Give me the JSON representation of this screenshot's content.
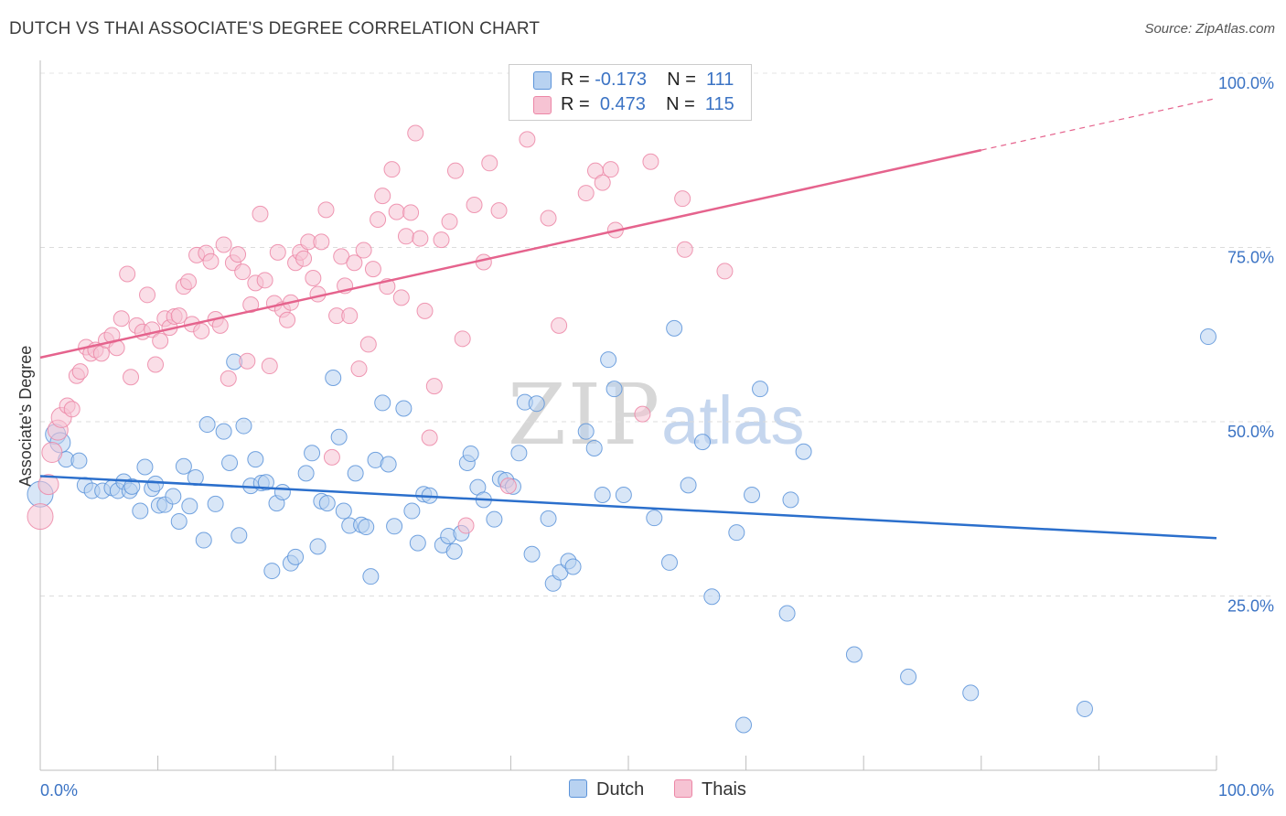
{
  "title": "DUTCH VS THAI ASSOCIATE'S DEGREE CORRELATION CHART",
  "source": "Source: ZipAtlas.com",
  "watermark": {
    "zip": "ZIP",
    "atlas": "atlas"
  },
  "colors": {
    "dutch": "#5b93d9",
    "dutch_fill": "#b8d2f1",
    "thais": "#ec86a6",
    "thais_fill": "#f6c3d3",
    "dutch_line": "#2b6fcc",
    "thais_line": "#e5638d",
    "tick_text": "#3b73c4"
  },
  "legend": {
    "r_label": "R =",
    "n_label": "N =",
    "rows": [
      {
        "r": "-0.173",
        "n": "111"
      },
      {
        "r": "0.473",
        "n": "115"
      }
    ]
  },
  "bottom_legend": [
    "Dutch",
    "Thais"
  ],
  "chart_data": {
    "type": "scatter",
    "title": "DUTCH VS THAI ASSOCIATE'S DEGREE CORRELATION CHART",
    "xlabel": "",
    "ylabel": "Associate's Degree",
    "xlim": [
      0,
      100
    ],
    "ylim": [
      0,
      100
    ],
    "x_tick_labels": [
      "0.0%",
      "100.0%"
    ],
    "y_tick_labels": [
      "100.0%",
      "75.0%",
      "50.0%",
      "25.0%"
    ],
    "y_ticks": [
      100,
      75,
      50,
      25
    ],
    "grid": true,
    "legend_position": "top-center",
    "series": [
      {
        "name": "Dutch",
        "color": "#5b93d9",
        "r": -0.173,
        "n": 111,
        "trend": {
          "x": [
            0,
            100
          ],
          "y": [
            42.2,
            33.3
          ],
          "dashed_from": null
        },
        "points": [
          [
            0,
            39.6
          ],
          [
            1.3,
            48.2
          ],
          [
            1.7,
            47
          ],
          [
            2.2,
            44.6
          ],
          [
            3.3,
            44.4
          ],
          [
            3.8,
            40.9
          ],
          [
            4.4,
            40.1
          ],
          [
            5.3,
            40.1
          ],
          [
            6.1,
            40.5
          ],
          [
            6.6,
            40.1
          ],
          [
            7.1,
            41.4
          ],
          [
            7.6,
            40.1
          ],
          [
            7.8,
            40.7
          ],
          [
            8.5,
            37.2
          ],
          [
            8.9,
            43.5
          ],
          [
            9.5,
            40.4
          ],
          [
            9.8,
            41.1
          ],
          [
            10.1,
            38
          ],
          [
            10.6,
            38.1
          ],
          [
            11.3,
            39.3
          ],
          [
            11.8,
            35.7
          ],
          [
            12.2,
            43.6
          ],
          [
            12.7,
            37.9
          ],
          [
            13.2,
            42
          ],
          [
            13.9,
            33
          ],
          [
            14.2,
            49.6
          ],
          [
            14.9,
            38.2
          ],
          [
            15.6,
            48.6
          ],
          [
            16.1,
            44.1
          ],
          [
            16.5,
            58.6
          ],
          [
            16.9,
            33.7
          ],
          [
            17.3,
            49.4
          ],
          [
            17.9,
            40.8
          ],
          [
            18.3,
            44.6
          ],
          [
            18.8,
            41.2
          ],
          [
            19.2,
            41.3
          ],
          [
            19.7,
            28.6
          ],
          [
            20.1,
            38.3
          ],
          [
            20.6,
            39.9
          ],
          [
            21.3,
            29.7
          ],
          [
            21.7,
            30.6
          ],
          [
            22.6,
            42.6
          ],
          [
            23.1,
            45.5
          ],
          [
            23.6,
            32.1
          ],
          [
            23.9,
            38.6
          ],
          [
            24.4,
            38.3
          ],
          [
            24.9,
            56.3
          ],
          [
            25.4,
            47.8
          ],
          [
            25.8,
            37.2
          ],
          [
            26.3,
            35.1
          ],
          [
            26.8,
            42.6
          ],
          [
            27.3,
            35.2
          ],
          [
            27.7,
            34.9
          ],
          [
            28.1,
            27.8
          ],
          [
            28.5,
            44.5
          ],
          [
            29.1,
            52.7
          ],
          [
            29.6,
            43.9
          ],
          [
            30.1,
            35
          ],
          [
            30.9,
            51.9
          ],
          [
            31.6,
            37.2
          ],
          [
            32.1,
            32.6
          ],
          [
            32.6,
            39.6
          ],
          [
            33.1,
            39.4
          ],
          [
            34.2,
            32.3
          ],
          [
            34.7,
            33.6
          ],
          [
            35.2,
            31.4
          ],
          [
            35.8,
            34
          ],
          [
            36.3,
            44.1
          ],
          [
            36.6,
            45.4
          ],
          [
            37.2,
            40.6
          ],
          [
            37.7,
            38.8
          ],
          [
            38.6,
            36
          ],
          [
            39.1,
            41.8
          ],
          [
            39.6,
            41.6
          ],
          [
            40.2,
            40.7
          ],
          [
            40.7,
            45.5
          ],
          [
            41.2,
            52.8
          ],
          [
            41.8,
            31
          ],
          [
            42.2,
            52.6
          ],
          [
            43.2,
            36.1
          ],
          [
            43.6,
            26.8
          ],
          [
            44.2,
            28.4
          ],
          [
            44.9,
            30
          ],
          [
            45.3,
            29.2
          ],
          [
            46.4,
            48.6
          ],
          [
            47.1,
            46.2
          ],
          [
            47.8,
            39.5
          ],
          [
            48.3,
            58.9
          ],
          [
            48.8,
            54.7
          ],
          [
            49.6,
            39.5
          ],
          [
            52.2,
            36.2
          ],
          [
            53.5,
            29.8
          ],
          [
            53.9,
            63.4
          ],
          [
            55.1,
            40.9
          ],
          [
            56.3,
            47.1
          ],
          [
            57.1,
            24.9
          ],
          [
            59.2,
            34.1
          ],
          [
            59.8,
            6.5
          ],
          [
            60.5,
            39.5
          ],
          [
            61.2,
            54.7
          ],
          [
            63.5,
            22.5
          ],
          [
            63.8,
            38.8
          ],
          [
            64.9,
            45.7
          ],
          [
            69.2,
            16.6
          ],
          [
            73.8,
            13.4
          ],
          [
            79.1,
            11.1
          ],
          [
            88.8,
            8.8
          ],
          [
            99.3,
            62.2
          ]
        ]
      },
      {
        "name": "Thais",
        "color": "#ec86a6",
        "r": 0.473,
        "n": 115,
        "trend": {
          "x": [
            0,
            100
          ],
          "y": [
            59.2,
            96.4
          ],
          "dashed_from": 80
        },
        "points": [
          [
            0,
            36.4
          ],
          [
            0.7,
            41
          ],
          [
            1,
            45.6
          ],
          [
            1.5,
            48.8
          ],
          [
            1.8,
            50.6
          ],
          [
            2.3,
            52.3
          ],
          [
            2.7,
            51.8
          ],
          [
            3.1,
            56.6
          ],
          [
            3.4,
            57.2
          ],
          [
            3.9,
            60.7
          ],
          [
            4.3,
            59.8
          ],
          [
            4.7,
            60.3
          ],
          [
            5.2,
            59.8
          ],
          [
            5.6,
            61.7
          ],
          [
            6.1,
            62.4
          ],
          [
            6.5,
            60.6
          ],
          [
            6.9,
            64.8
          ],
          [
            7.4,
            71.2
          ],
          [
            7.7,
            56.4
          ],
          [
            8.2,
            63.8
          ],
          [
            8.7,
            62.9
          ],
          [
            9.1,
            68.2
          ],
          [
            9.5,
            63.2
          ],
          [
            9.8,
            58.2
          ],
          [
            10.2,
            61.6
          ],
          [
            10.6,
            64.8
          ],
          [
            11,
            63.5
          ],
          [
            11.4,
            65.1
          ],
          [
            11.8,
            65.2
          ],
          [
            12.2,
            69.4
          ],
          [
            12.6,
            70.1
          ],
          [
            12.9,
            64
          ],
          [
            13.3,
            73.9
          ],
          [
            13.7,
            63
          ],
          [
            14.1,
            74.2
          ],
          [
            14.5,
            73
          ],
          [
            14.9,
            64.7
          ],
          [
            15.3,
            63.8
          ],
          [
            15.6,
            75.4
          ],
          [
            16,
            56.2
          ],
          [
            16.4,
            72.8
          ],
          [
            16.8,
            74
          ],
          [
            17.2,
            71.5
          ],
          [
            17.6,
            58.7
          ],
          [
            17.9,
            66.8
          ],
          [
            18.3,
            69.9
          ],
          [
            18.7,
            79.8
          ],
          [
            19.1,
            70.3
          ],
          [
            19.5,
            58
          ],
          [
            19.9,
            67
          ],
          [
            20.2,
            74.3
          ],
          [
            20.6,
            66.1
          ],
          [
            21,
            64.6
          ],
          [
            21.3,
            67.1
          ],
          [
            21.7,
            72.8
          ],
          [
            22.1,
            74.3
          ],
          [
            22.4,
            73.4
          ],
          [
            22.8,
            75.8
          ],
          [
            23.2,
            70.6
          ],
          [
            23.6,
            68.3
          ],
          [
            23.9,
            75.8
          ],
          [
            24.3,
            80.4
          ],
          [
            24.8,
            44.9
          ],
          [
            25.2,
            65.2
          ],
          [
            25.6,
            73.7
          ],
          [
            25.9,
            69.5
          ],
          [
            26.3,
            65.2
          ],
          [
            26.7,
            72.8
          ],
          [
            27.1,
            57.6
          ],
          [
            27.5,
            74.6
          ],
          [
            27.9,
            61.1
          ],
          [
            28.3,
            71.9
          ],
          [
            28.7,
            79
          ],
          [
            29.1,
            82.4
          ],
          [
            29.5,
            69.4
          ],
          [
            29.9,
            86.2
          ],
          [
            30.3,
            80.1
          ],
          [
            30.7,
            67.8
          ],
          [
            31.1,
            76.6
          ],
          [
            31.5,
            80
          ],
          [
            31.9,
            91.4
          ],
          [
            32.3,
            76.3
          ],
          [
            32.7,
            65.9
          ],
          [
            33.1,
            47.7
          ],
          [
            33.5,
            55.1
          ],
          [
            34.1,
            76.1
          ],
          [
            34.8,
            78.7
          ],
          [
            35.3,
            86
          ],
          [
            35.9,
            61.9
          ],
          [
            36.2,
            35.1
          ],
          [
            36.9,
            81.1
          ],
          [
            37.7,
            72.9
          ],
          [
            38.2,
            87.1
          ],
          [
            39,
            80.3
          ],
          [
            39.8,
            40.8
          ],
          [
            41.4,
            90.5
          ],
          [
            43.2,
            79.2
          ],
          [
            44.1,
            63.8
          ],
          [
            46.4,
            82.8
          ],
          [
            47.2,
            86
          ],
          [
            47.8,
            84.3
          ],
          [
            48.5,
            86.2
          ],
          [
            48.9,
            77.5
          ],
          [
            51.2,
            51.1
          ],
          [
            51.9,
            87.3
          ],
          [
            54.6,
            82
          ],
          [
            54.8,
            74.7
          ],
          [
            58.2,
            71.6
          ]
        ]
      }
    ]
  }
}
